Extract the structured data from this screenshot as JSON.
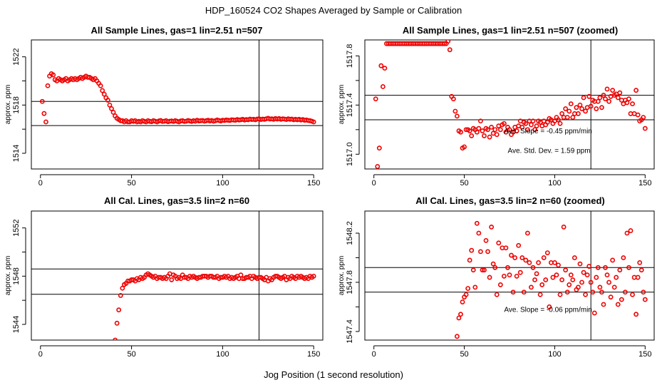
{
  "figure": {
    "title": "HDP_160524  CO2 Shapes Averaged by Sample or Calibration",
    "xlabel": "Jog Position (1 second resolution)"
  },
  "colors": {
    "points": "#ee0000",
    "axes": "#000000"
  },
  "chart_data": [
    {
      "type": "scatter",
      "title": "All Sample Lines, gas=1 lin=2.51 n=507",
      "ylabel": "approx. ppm",
      "xlim": [
        -5,
        155
      ],
      "ylim": [
        1512.7,
        1523.4
      ],
      "xticks": [
        0,
        50,
        100,
        150
      ],
      "yticks": [
        1514,
        1518,
        1522
      ],
      "hlines": [
        1518.3,
        1516.3
      ],
      "vline": 120,
      "annotations": [],
      "series": [
        {
          "x0": 1,
          "y": [
            1518.3,
            1517.3,
            1516.6,
            1519.6,
            1520.4,
            1520.6,
            1520.5,
            1520.1,
            1520.0,
            1520.2,
            1520.1,
            1520.0,
            1520.1,
            1520.2,
            1520.0,
            1520.1,
            1520.2,
            1520.1,
            1520.2,
            1520.1,
            1520.2,
            1520.3,
            1520.2,
            1520.3,
            1520.4,
            1520.3,
            1520.3,
            1520.2,
            1520.1,
            1520.2,
            1520.0,
            1519.8,
            1519.6,
            1519.2,
            1518.9,
            1518.6,
            1518.4,
            1518.0,
            1517.7,
            1517.4,
            1517.1,
            1516.9,
            1516.8,
            1516.7,
            1516.7,
            1516.6,
            1516.7,
            1516.6,
            1516.6,
            1516.7
          ]
        },
        {
          "x0": 51,
          "y": [
            1516.65,
            1516.7,
            1516.6,
            1516.65,
            1516.6,
            1516.7,
            1516.65,
            1516.6,
            1516.7,
            1516.65,
            1516.62,
            1516.7,
            1516.66,
            1516.6,
            1516.68,
            1516.72,
            1516.64,
            1516.66,
            1516.7,
            1516.62,
            1516.66,
            1516.68,
            1516.64,
            1516.7,
            1516.66,
            1516.6,
            1516.68,
            1516.7,
            1516.64,
            1516.66,
            1516.72,
            1516.68,
            1516.64,
            1516.7,
            1516.66,
            1516.74,
            1516.68,
            1516.7,
            1516.72,
            1516.66,
            1516.7,
            1516.74,
            1516.68,
            1516.72,
            1516.66,
            1516.7,
            1516.76,
            1516.72,
            1516.68,
            1516.74
          ]
        },
        {
          "x0": 101,
          "y": [
            1516.72,
            1516.76,
            1516.74,
            1516.72,
            1516.78,
            1516.76,
            1516.74,
            1516.8,
            1516.76,
            1516.78,
            1516.82,
            1516.76,
            1516.8,
            1516.78,
            1516.84,
            1516.8,
            1516.82,
            1516.78,
            1516.84,
            1516.86,
            1516.8,
            1516.84,
            1516.82,
            1516.86,
            1516.9,
            1516.84,
            1516.86,
            1516.82,
            1516.88,
            1516.84,
            1516.88,
            1516.82,
            1516.86,
            1516.84,
            1516.8,
            1516.86,
            1516.82,
            1516.84,
            1516.78,
            1516.82,
            1516.78,
            1516.82,
            1516.76,
            1516.8,
            1516.74,
            1516.76,
            1516.72,
            1516.7,
            1516.66,
            1516.6
          ]
        }
      ]
    },
    {
      "type": "scatter",
      "title": "All Sample Lines, gas=1 lin=2.51 n=507 (zoomed)",
      "ylabel": "approx. ppm",
      "xlim": [
        -5,
        155
      ],
      "ylim": [
        1516.88,
        1517.93
      ],
      "xticks": [
        0,
        50,
        100,
        150
      ],
      "yticks": [
        1517.0,
        1517.4,
        1517.8
      ],
      "ytick_labels": [
        "1517.0",
        "1517.4",
        "1517.8"
      ],
      "hlines": [
        1517.48,
        1517.28
      ],
      "vline": 120,
      "annotations": [
        {
          "text": "Ave. Slope =  -0.45  ppm/min",
          "x": 72,
          "y": 1517.17
        },
        {
          "text": "Ave. Std. Dev. =  1.59  ppm",
          "x": 74,
          "y": 1517.01
        }
      ],
      "series": [
        {
          "x0": 1,
          "y": [
            1517.45,
            1516.9,
            1517.05,
            1517.72,
            1517.55,
            1517.7,
            1517.9,
            1517.9,
            1517.9,
            1517.9,
            1517.9,
            1517.9,
            1517.9,
            1517.9,
            1517.9,
            1517.9,
            1517.9,
            1517.9,
            1517.9,
            1517.9,
            1517.9,
            1517.9,
            1517.9,
            1517.9,
            1517.9,
            1517.9,
            1517.9,
            1517.9,
            1517.9,
            1517.9,
            1517.9,
            1517.9,
            1517.9,
            1517.9,
            1517.9,
            1517.9,
            1517.9,
            1517.9,
            1517.9,
            1517.9,
            1517.92,
            1517.85,
            1517.47,
            1517.45,
            1517.35,
            1517.31,
            1517.19,
            1517.18,
            1517.05,
            1517.06
          ]
        },
        {
          "x0": 51,
          "y": [
            1517.2,
            1517.2,
            1517.19,
            1517.15,
            1517.21,
            1517.2,
            1517.18,
            1517.21,
            1517.27,
            1517.19,
            1517.15,
            1517.21,
            1517.2,
            1517.14,
            1517.22,
            1517.17,
            1517.2,
            1517.16,
            1517.23,
            1517.2,
            1517.24,
            1517.25,
            1517.18,
            1517.22,
            1517.2,
            1517.16,
            1517.18,
            1517.22,
            1517.19,
            1517.23,
            1517.27,
            1517.22,
            1517.26,
            1517.25,
            1517.2,
            1517.27,
            1517.24,
            1517.27,
            1517.2,
            1517.23,
            1517.27,
            1517.26,
            1517.23,
            1517.27,
            1517.24,
            1517.26,
            1517.29,
            1517.28,
            1517.25,
            1517.27
          ]
        },
        {
          "x0": 101,
          "y": [
            1517.3,
            1517.28,
            1517.25,
            1517.33,
            1517.3,
            1517.37,
            1517.3,
            1517.35,
            1517.41,
            1517.3,
            1517.33,
            1517.38,
            1517.33,
            1517.4,
            1517.37,
            1517.46,
            1517.35,
            1517.38,
            1517.47,
            1517.39,
            1517.44,
            1517.43,
            1517.37,
            1517.43,
            1517.46,
            1517.38,
            1517.48,
            1517.45,
            1517.53,
            1517.43,
            1517.47,
            1517.52,
            1517.48,
            1517.49,
            1517.46,
            1517.5,
            1517.44,
            1517.41,
            1517.44,
            1517.42,
            1517.45,
            1517.33,
            1517.41,
            1517.33,
            1517.52,
            1517.32,
            1517.27,
            1517.28,
            1517.3,
            1517.21
          ]
        }
      ]
    },
    {
      "type": "scatter",
      "title": "All Cal. Lines, gas=3.5 lin=2 n=60",
      "ylabel": "approx. ppm",
      "xlim": [
        -5,
        155
      ],
      "ylim": [
        1542.7,
        1553.4
      ],
      "xticks": [
        0,
        50,
        100,
        150
      ],
      "yticks": [
        1544,
        1548,
        1552
      ],
      "hlines": [
        1548.6,
        1546.5
      ],
      "vline": 120,
      "annotations": [],
      "series": [
        {
          "x0": 41,
          "y": [
            1542.7,
            1544.1,
            1545.2,
            1546.4,
            1547.0,
            1547.3,
            1547.4,
            1547.6,
            1547.6,
            1547.7
          ]
        },
        {
          "x0": 51,
          "y": [
            1547.7,
            1547.6,
            1547.8,
            1547.7,
            1547.9,
            1547.8,
            1547.9,
            1548.1,
            1548.2,
            1548.1,
            1548.0,
            1547.9,
            1548.0,
            1547.8,
            1547.9,
            1547.9,
            1547.8,
            1547.9,
            1547.8,
            1548.0,
            1548.2,
            1547.7,
            1548.1,
            1548.0,
            1547.8,
            1547.9,
            1547.8,
            1548.1,
            1547.9,
            1547.9,
            1547.8,
            1548.0,
            1547.9,
            1548.0,
            1547.9,
            1547.8,
            1547.9,
            1547.9,
            1548.0,
            1548.0,
            1548.0,
            1547.9,
            1548.0,
            1548.0,
            1547.9,
            1547.9,
            1548.0,
            1547.8,
            1547.9,
            1547.9
          ]
        },
        {
          "x0": 101,
          "y": [
            1548.0,
            1547.9,
            1548.0,
            1547.8,
            1547.9,
            1547.8,
            1547.9,
            1548.0,
            1547.8,
            1548.1,
            1547.8,
            1547.8,
            1547.9,
            1547.9,
            1548.0,
            1547.8,
            1548.0,
            1547.9,
            1547.8,
            1547.9,
            1547.9,
            1547.8,
            1547.7,
            1547.9,
            1547.6,
            1547.8,
            1547.7,
            1547.9,
            1548.0,
            1548.0,
            1547.9,
            1547.8,
            1547.9,
            1548.0,
            1547.7,
            1547.9,
            1547.8,
            1548.0,
            1547.9,
            1547.8,
            1548.0,
            1547.9,
            1548.0,
            1547.9,
            1547.8,
            1547.9,
            1547.8,
            1548.0,
            1547.9,
            1548.0
          ]
        }
      ]
    },
    {
      "type": "scatter",
      "title": "All Cal. Lines, gas=3.5 lin=2 n=60 (zoomed)",
      "ylabel": "approx. ppm",
      "xlim": [
        -5,
        155
      ],
      "ylim": [
        1547.33,
        1548.38
      ],
      "xticks": [
        0,
        50,
        100,
        150
      ],
      "yticks": [
        1547.4,
        1547.8,
        1548.2
      ],
      "ytick_labels": [
        "1547.4",
        "1547.8",
        "1548.2"
      ],
      "hlines": [
        1547.92,
        1547.72
      ],
      "vline": 120,
      "annotations": [
        {
          "text": "Ave. Slope =  -0.06  ppm/min",
          "x": 72,
          "y": 1547.56
        }
      ],
      "series": [
        {
          "x0": 46,
          "y": [
            1547.36,
            1547.51,
            1547.54,
            1547.64,
            1547.68
          ]
        },
        {
          "x0": 51,
          "y": [
            1547.7,
            1547.75,
            1547.98,
            1548.06,
            1547.9,
            1547.76,
            1548.28,
            1548.2,
            1548.05,
            1547.9,
            1547.9,
            1548.14,
            1548.05,
            1547.84,
            1548.25,
            1547.95,
            1547.92,
            1547.7,
            1548.12,
            1547.78,
            1548.08,
            1547.85,
            1548.08,
            1547.92,
            1547.86,
            1548.02,
            1547.72,
            1548.0,
            1547.85,
            1548.1,
            1547.88,
            1548.0,
            1547.72,
            1547.98,
            1548.2,
            1547.96,
            1547.76,
            1547.92,
            1547.82,
            1547.87,
            1547.96,
            1547.7,
            1547.78,
            1548.0,
            1547.82,
            1548.04,
            1547.6,
            1547.96,
            1547.84,
            1547.96
          ]
        },
        {
          "x0": 101,
          "y": [
            1547.86,
            1547.94,
            1547.7,
            1547.82,
            1548.25,
            1547.9,
            1547.72,
            1547.78,
            1547.86,
            1547.82,
            1548.0,
            1547.74,
            1547.76,
            1547.95,
            1547.8,
            1547.88,
            1547.7,
            1547.86,
            1547.93,
            1547.8,
            1547.72,
            1547.55,
            1547.84,
            1547.92,
            1547.76,
            1547.72,
            1547.62,
            1547.92,
            1547.86,
            1547.8,
            1547.68,
            1547.98,
            1547.76,
            1547.84,
            1547.62,
            1547.9,
            1547.66,
            1548.0,
            1547.72,
            1548.2,
            1547.92,
            1548.22,
            1547.7,
            1547.84,
            1547.54,
            1547.84,
            1547.96,
            1547.9,
            1547.72,
            1547.66
          ]
        }
      ]
    }
  ]
}
